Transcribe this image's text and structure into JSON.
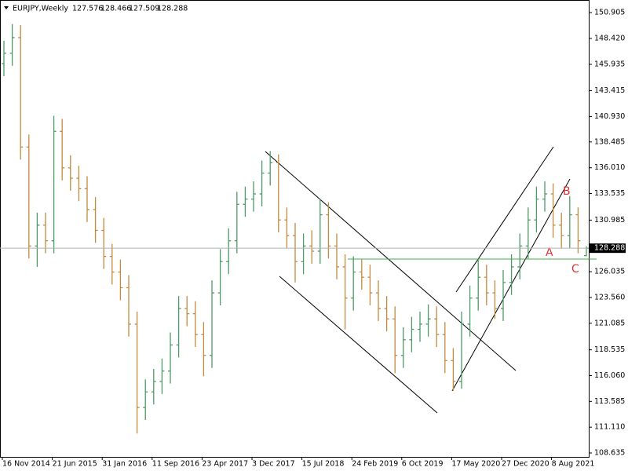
{
  "chart_data": {
    "type": "ohlc",
    "title": "EURJPY,Weekly",
    "categories": [
      "16 Nov 2014",
      null,
      null,
      null,
      null,
      null,
      "21 Jun 2015",
      null,
      null,
      null,
      null,
      null,
      "31 Jan 2016",
      null,
      null,
      null,
      null,
      null,
      "11 Sep 2016",
      null,
      null,
      null,
      null,
      null,
      "23 Apr 2017",
      null,
      null,
      null,
      null,
      null,
      "3 Dec 2017",
      null,
      null,
      null,
      null,
      null,
      "15 Jul 2018",
      null,
      null,
      null,
      null,
      null,
      "24 Feb 2019",
      null,
      null,
      null,
      null,
      null,
      "6 Oct 2019",
      null,
      null,
      null,
      null,
      null,
      "17 May 2020",
      null,
      null,
      null,
      null,
      null,
      "27 Dec 2020",
      null,
      null,
      null,
      null,
      null,
      "8 Aug 2021",
      null,
      null,
      null,
      null
    ],
    "open": [
      146.0,
      147.0,
      148.5,
      138.0,
      128.5,
      130.5,
      129.0,
      139.5,
      136.0,
      135.0,
      134.0,
      132.0,
      130.0,
      127.5,
      126.0,
      124.5,
      121.0,
      113.0,
      114.5,
      115.5,
      116.5,
      119.0,
      122.5,
      122.0,
      120.0,
      118.0,
      124.0,
      127.0,
      129.0,
      132.5,
      133.0,
      133.5,
      135.5,
      136.5,
      131.0,
      129.5,
      127.0,
      128.5,
      128.0,
      131.5,
      128.5,
      126.5,
      123.5,
      126.0,
      125.5,
      124.0,
      122.5,
      121.5,
      118.0,
      119.5,
      120.5,
      121.0,
      121.5,
      120.0,
      117.5,
      115.5,
      121.0,
      123.5,
      125.5,
      124.0,
      122.5,
      125.0,
      126.5,
      128.5,
      131.0,
      133.0,
      133.5,
      130.5,
      129.5,
      131.5,
      127.576
    ],
    "high": [
      148.2,
      149.8,
      149.7,
      139.2,
      131.7,
      131.7,
      141.0,
      140.7,
      137.2,
      136.2,
      135.2,
      133.2,
      131.2,
      128.7,
      127.2,
      125.7,
      122.2,
      115.7,
      116.7,
      117.7,
      120.2,
      123.7,
      123.7,
      123.2,
      121.2,
      125.2,
      128.2,
      130.2,
      133.7,
      134.2,
      134.7,
      136.7,
      137.6,
      137.3,
      132.2,
      130.7,
      129.7,
      130.0,
      133.0,
      132.7,
      129.7,
      127.7,
      127.5,
      127.2,
      126.7,
      125.2,
      123.7,
      122.7,
      120.7,
      121.7,
      122.2,
      122.9,
      122.7,
      121.2,
      118.7,
      122.2,
      124.7,
      127.2,
      126.7,
      125.2,
      126.2,
      127.7,
      129.7,
      132.2,
      134.2,
      134.7,
      134.5,
      131.7,
      133.3,
      132.2,
      128.466
    ],
    "low": [
      144.8,
      145.8,
      136.8,
      127.3,
      126.5,
      127.8,
      127.8,
      134.8,
      133.8,
      132.8,
      130.8,
      128.8,
      126.3,
      124.8,
      123.3,
      119.8,
      110.5,
      111.8,
      113.3,
      114.3,
      115.3,
      117.8,
      120.8,
      118.8,
      116.0,
      116.8,
      122.8,
      125.8,
      127.8,
      131.3,
      131.8,
      132.3,
      134.3,
      129.8,
      128.3,
      125.0,
      125.8,
      126.8,
      126.8,
      127.3,
      125.3,
      120.5,
      122.3,
      124.3,
      122.8,
      121.3,
      120.3,
      116.3,
      116.8,
      118.3,
      119.3,
      119.8,
      118.8,
      116.3,
      114.6,
      114.8,
      119.8,
      122.3,
      122.8,
      121.5,
      121.3,
      123.8,
      125.3,
      127.3,
      129.8,
      131.8,
      129.3,
      128.3,
      128.3,
      127.8,
      127.509
    ],
    "close": [
      147.0,
      148.5,
      138.0,
      128.5,
      130.5,
      129.0,
      139.5,
      136.0,
      135.0,
      134.0,
      132.0,
      130.0,
      127.5,
      126.0,
      124.5,
      121.0,
      113.0,
      114.5,
      115.5,
      116.5,
      119.0,
      122.5,
      122.0,
      120.0,
      118.0,
      124.0,
      127.0,
      129.0,
      132.5,
      133.0,
      133.5,
      135.5,
      136.5,
      131.0,
      129.5,
      127.0,
      128.5,
      128.0,
      131.5,
      128.5,
      126.5,
      123.5,
      126.0,
      125.5,
      124.0,
      122.5,
      121.5,
      118.0,
      119.5,
      120.5,
      121.0,
      121.5,
      120.0,
      117.5,
      115.5,
      121.0,
      123.5,
      125.5,
      124.0,
      122.5,
      125.0,
      126.5,
      128.5,
      131.0,
      133.0,
      133.5,
      130.5,
      129.5,
      131.5,
      129.0,
      128.288
    ],
    "up_color": "#4e9a68",
    "down_color": "#c48a3e",
    "ylim": [
      108.26,
      152.11
    ],
    "yticks": [
      150.905,
      145.935,
      {
        "value": 148.42,
        "label": "148.420"
      },
      143.415,
      {
        "value": 140.93,
        "label": "140.930"
      },
      138.485,
      {
        "value": 136.01,
        "label": "136.010"
      },
      133.535,
      130.985,
      126.035,
      {
        "value": 123.56,
        "label": "123.560"
      },
      121.085,
      118.535,
      {
        "value": 116.06,
        "label": "116.060"
      },
      113.585,
      {
        "value": 111.11,
        "label": "111.110"
      },
      108.635
    ],
    "grid": false,
    "annotations": [
      {
        "text": "A"
      },
      {
        "text": "B"
      },
      {
        "text": "C"
      }
    ]
  }
}
